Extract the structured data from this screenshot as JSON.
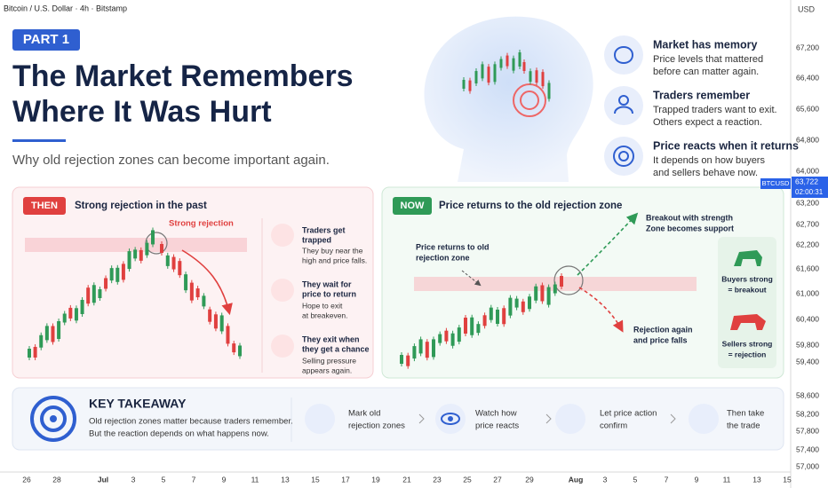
{
  "header": {
    "symbol": "Bitcoin / U.S. Dollar · 4h · Bitstamp",
    "currency": "USD"
  },
  "price_axis": [
    "67,200",
    "66,400",
    "65,600",
    "64,800",
    "64,000",
    "63,200",
    "62,700",
    "62,200",
    "61,600",
    "61,000",
    "60,400",
    "59,800",
    "59,400",
    "58,600",
    "58,200",
    "57,800",
    "57,400",
    "57,000"
  ],
  "price_badge": {
    "symbol": "BTCUSD",
    "price": "63,722",
    "countdown": "02:00:31"
  },
  "time_axis": [
    "26",
    "28",
    "Jul",
    "3",
    "5",
    "7",
    "9",
    "11",
    "13",
    "15",
    "17",
    "19",
    "21",
    "23",
    "25",
    "27",
    "29",
    "Aug",
    "3",
    "5",
    "7",
    "9",
    "11",
    "13",
    "15"
  ],
  "badge": "PART 1",
  "title": [
    "The Market Remembers",
    "Where It Was Hurt"
  ],
  "subtitle": "Why old rejection zones can become important again.",
  "features": [
    {
      "title": "Market has memory",
      "text": [
        "Price levels that mattered",
        "before can matter again."
      ]
    },
    {
      "title": "Traders remember",
      "text": [
        "Trapped traders want to exit.",
        "Others expect a reaction."
      ]
    },
    {
      "title": "Price reacts when it returns",
      "text": [
        "It depends on how buyers",
        "and sellers behave now."
      ]
    }
  ],
  "then": {
    "tag": "THEN",
    "heading": "Strong rejection in the past",
    "annotation": "Strong rejection",
    "steps": [
      {
        "title": [
          "Traders get",
          "trapped"
        ],
        "text": [
          "They buy near the",
          "high and price falls."
        ]
      },
      {
        "title": [
          "They wait for",
          "price to return"
        ],
        "text": [
          "Hope to exit",
          "at breakeven."
        ]
      },
      {
        "title": [
          "They exit when",
          "they get a chance"
        ],
        "text": [
          "Selling pressure",
          "appears again."
        ]
      }
    ]
  },
  "now": {
    "tag": "NOW",
    "heading": "Price returns to the old rejection zone",
    "return_note": [
      "Price returns to old",
      "rejection zone"
    ],
    "breakout_note": [
      "Breakout with strength",
      "Zone becomes support"
    ],
    "rejection_note": [
      "Rejection again",
      "and price falls"
    ],
    "buyers": [
      "Buyers strong",
      "= breakout"
    ],
    "sellers": [
      "Sellers strong",
      "= rejection"
    ]
  },
  "takeaway": {
    "title": "KEY TAKEAWAY",
    "text": [
      "Old rejection zones matter because traders remember.",
      "But the reaction depends on what happens now."
    ],
    "steps": [
      [
        "Mark old",
        "rejection zones"
      ],
      [
        "Watch how",
        "price reacts"
      ],
      [
        "Let price action",
        "confirm"
      ],
      [
        "Then take",
        "the trade"
      ]
    ]
  }
}
